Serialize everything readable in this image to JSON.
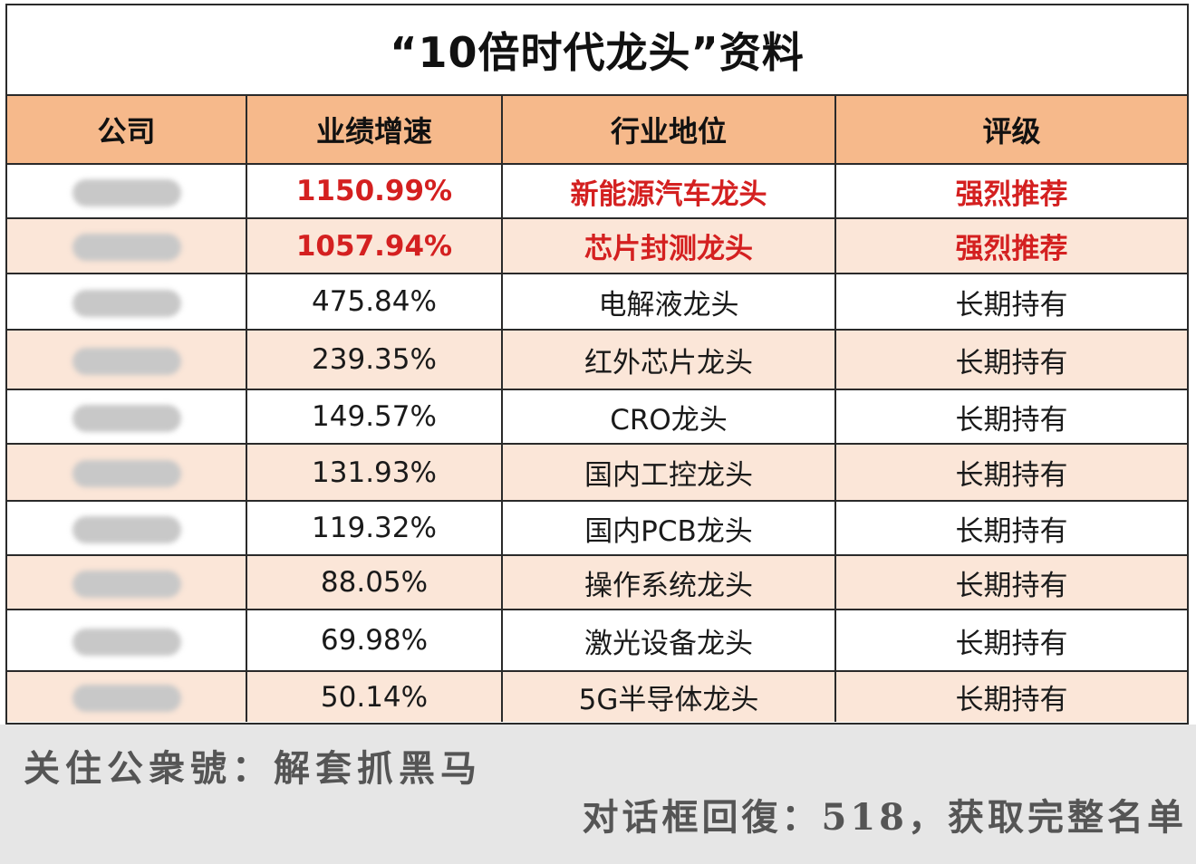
{
  "title": "“10倍时代龙头”资料",
  "headers": [
    "公司",
    "业绩增速",
    "行业地位",
    "评级"
  ],
  "rows": [
    {
      "growth": "1150.99%",
      "position": "新能源汽车龙头",
      "rating": "强烈推荐"
    },
    {
      "growth": "1057.94%",
      "position": "芯片封测龙头",
      "rating": "强烈推荐"
    },
    {
      "growth": "475.84%",
      "position": "电解液龙头",
      "rating": "长期持有"
    },
    {
      "growth": "239.35%",
      "position": "红外芯片龙头",
      "rating": "长期持有"
    },
    {
      "growth": "149.57%",
      "position": "CRO龙头",
      "rating": "长期持有"
    },
    {
      "growth": "131.93%",
      "position": "国内工控龙头",
      "rating": "长期持有"
    },
    {
      "growth": "119.32%",
      "position": "国内PCB龙头",
      "rating": "长期持有"
    },
    {
      "growth": "88.05%",
      "position": "操作系统龙头",
      "rating": "长期持有"
    },
    {
      "growth": "69.98%",
      "position": "激光设备龙头",
      "rating": "长期持有"
    },
    {
      "growth": "50.14%",
      "position": "5G半导体龙头",
      "rating": "长期持有"
    }
  ],
  "footer": {
    "line1": "关住公衆號：解套抓黑马",
    "line2": "对话框回復：518，获取完整名单"
  },
  "colors": {
    "header_bg": "#f6b98b",
    "alt_row_bg": "#fbe6d8",
    "highlight_text": "#d42020"
  }
}
